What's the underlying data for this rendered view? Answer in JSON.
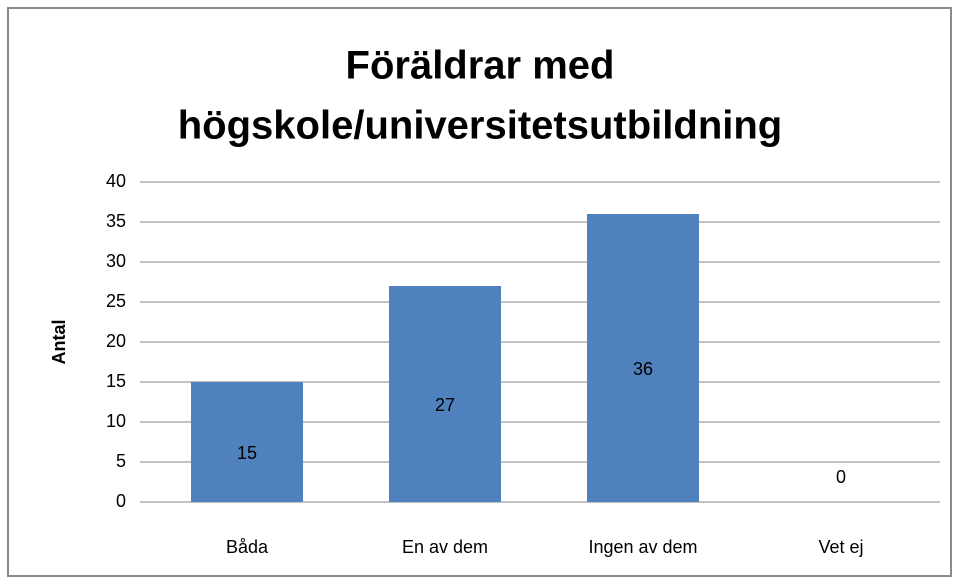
{
  "chart_data": {
    "type": "bar",
    "title": [
      "Föräldrar med",
      "högskole/universitetsutbildning"
    ],
    "y_label": "Antal",
    "categories": [
      "Båda",
      "En av dem",
      "Ingen av dem",
      "Vet ej"
    ],
    "values": [
      15,
      27,
      36,
      0
    ],
    "color": "#4f81bd",
    "ylim": [
      0,
      40
    ],
    "yticks": [
      0,
      5,
      10,
      15,
      20,
      25,
      30,
      35,
      40
    ],
    "grid": true
  }
}
